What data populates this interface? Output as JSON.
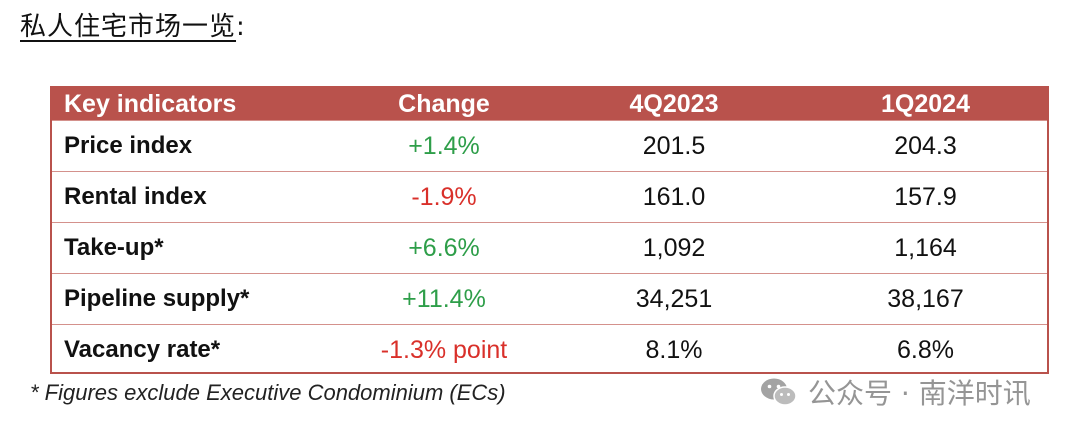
{
  "heading": {
    "title": "私人住宅市场一览",
    "colon": ":"
  },
  "table": {
    "headers": [
      "Key indicators",
      "Change",
      "4Q2023",
      "1Q2024"
    ],
    "rows": [
      {
        "indicator": "Price index",
        "change": "+1.4%",
        "q4_2023": "201.5",
        "q1_2024": "204.3"
      },
      {
        "indicator": "Rental index",
        "change": "-1.9%",
        "q4_2023": "161.0",
        "q1_2024": "157.9"
      },
      {
        "indicator": "Take-up*",
        "change": "+6.6%",
        "q4_2023": "1,092",
        "q1_2024": "1,164"
      },
      {
        "indicator": "Pipeline supply*",
        "change": "+11.4%",
        "q4_2023": "34,251",
        "q1_2024": "38,167"
      },
      {
        "indicator": "Vacancy rate*",
        "change": "-1.3% point",
        "q4_2023": "8.1%",
        "q1_2024": "6.8%"
      }
    ]
  },
  "footnote": "*  Figures exclude Executive Condominium (ECs)",
  "watermark": {
    "text": "公众号 · 南洋时讯",
    "icon": "wechat-icon"
  },
  "colors": {
    "header_bg": "#b9524c",
    "positive": "#2e9e49",
    "negative": "#d9302a"
  }
}
